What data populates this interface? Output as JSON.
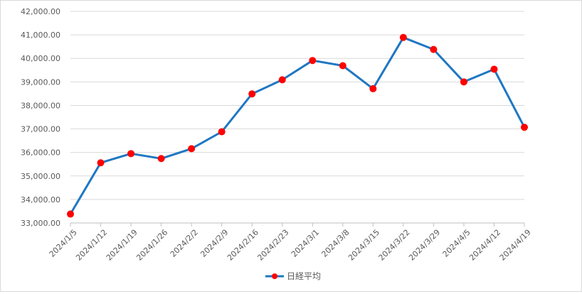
{
  "chart_data": {
    "type": "line",
    "categories": [
      "2024/1/5",
      "2024/1/12",
      "2024/1/19",
      "2024/1/26",
      "2024/2/2",
      "2024/2/9",
      "2024/2/16",
      "2024/2/23",
      "2024/3/1",
      "2024/3/8",
      "2024/3/15",
      "2024/3/22",
      "2024/3/29",
      "2024/4/5",
      "2024/4/12",
      "2024/4/19"
    ],
    "series": [
      {
        "name": "日経平均",
        "values": [
          33380,
          35560,
          35950,
          35740,
          36160,
          36880,
          38490,
          39090,
          39910,
          39690,
          38710,
          40890,
          40380,
          39000,
          39540,
          37070
        ]
      }
    ],
    "ylim": [
      33000,
      42000
    ],
    "yticks": [
      "33,000.00",
      "34,000.00",
      "35,000.00",
      "36,000.00",
      "37,000.00",
      "38,000.00",
      "39,000.00",
      "40,000.00",
      "41,000.00",
      "42,000.00"
    ],
    "ytick_values": [
      33000,
      34000,
      35000,
      36000,
      37000,
      38000,
      39000,
      40000,
      41000,
      42000
    ],
    "title": "",
    "xlabel": "",
    "ylabel": "",
    "grid": true,
    "legend_position": "bottom",
    "colors": {
      "line": "#1f77c2",
      "marker": "#ff0000",
      "grid": "#d9d9d9",
      "axis": "#bfbfbf"
    }
  }
}
